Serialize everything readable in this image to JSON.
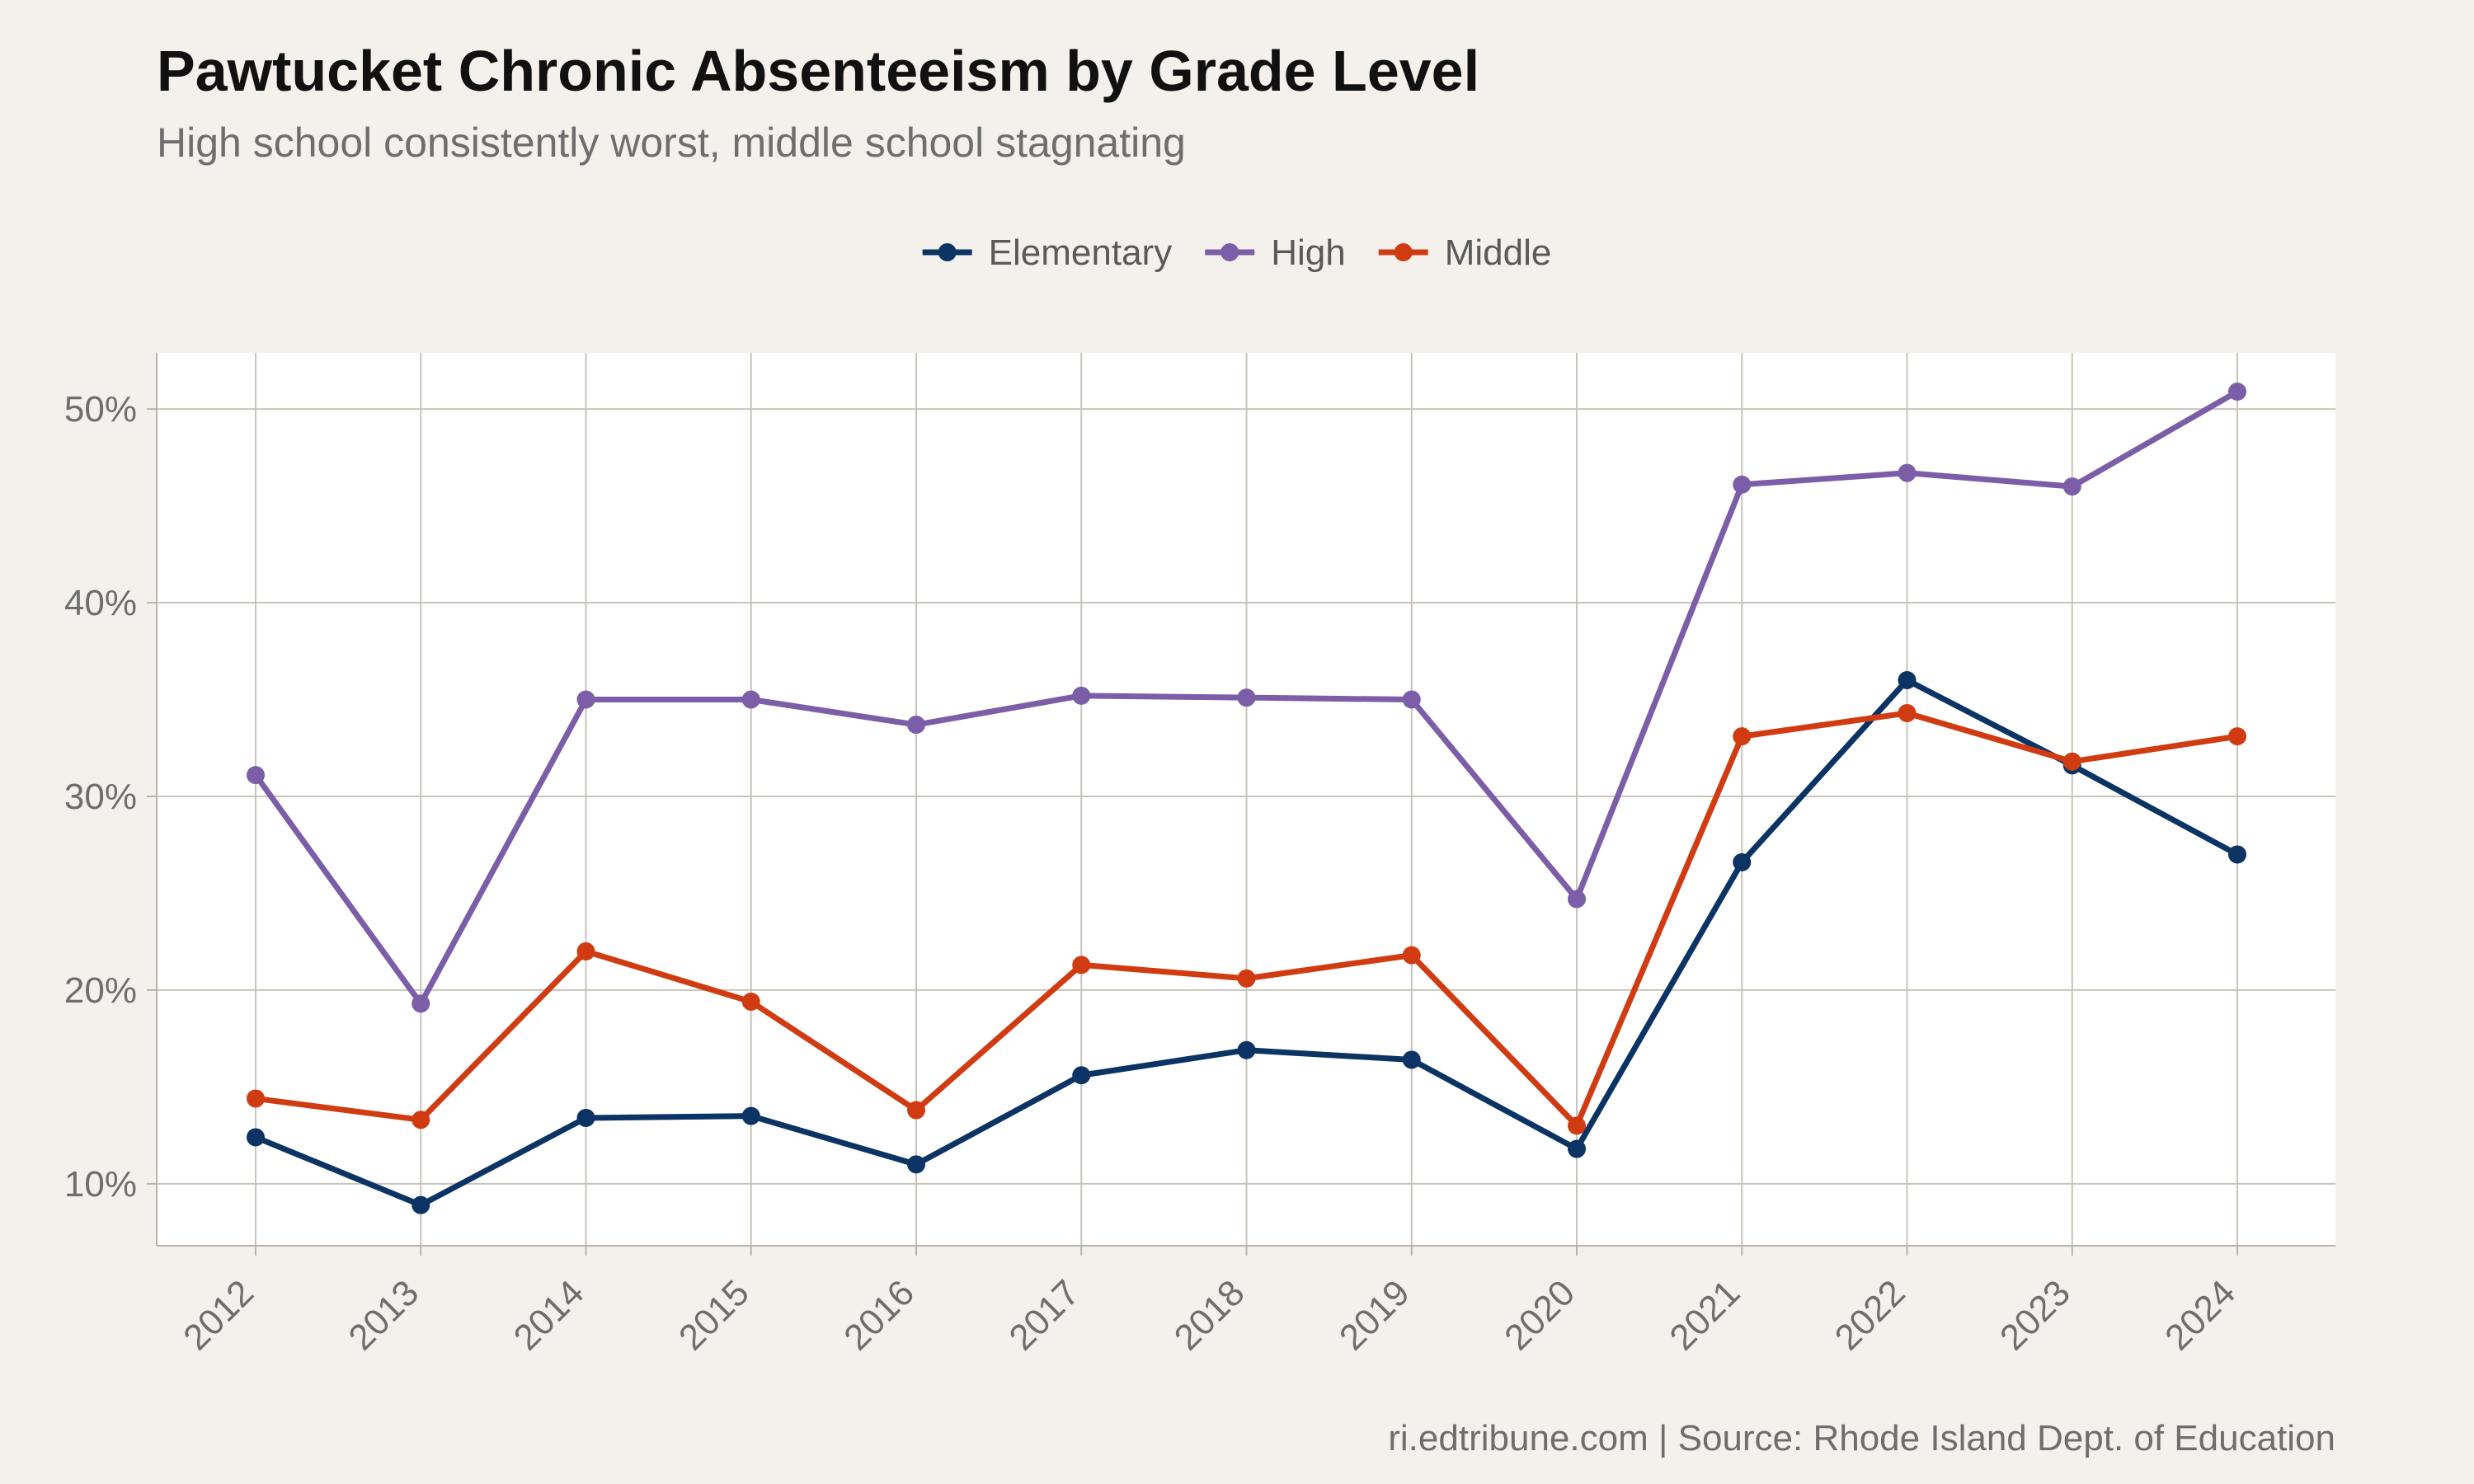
{
  "chart_data": {
    "type": "line",
    "title": "Pawtucket Chronic Absenteeism by Grade Level",
    "subtitle": "High school consistently worst, middle school stagnating",
    "caption": "ri.edtribune.com | Source: Rhode Island Dept. of Education",
    "xlabel": "",
    "ylabel": "",
    "x": [
      2012,
      2013,
      2014,
      2015,
      2016,
      2017,
      2018,
      2019,
      2020,
      2021,
      2022,
      2023,
      2024
    ],
    "x_tick_labels": [
      "2012",
      "2013",
      "2014",
      "2015",
      "2016",
      "2017",
      "2018",
      "2019",
      "2020",
      "2021",
      "2022",
      "2023",
      "2024"
    ],
    "y_ticks": [
      10,
      20,
      30,
      40,
      50
    ],
    "y_tick_labels": [
      "10%",
      "20%",
      "30%",
      "40%",
      "50%"
    ],
    "ylim": [
      6.8,
      52.9
    ],
    "grid": true,
    "legend_position": "top",
    "series": [
      {
        "name": "Elementary",
        "color": "#0b3364",
        "values": [
          12.4,
          8.9,
          13.4,
          13.5,
          11.0,
          15.6,
          16.9,
          16.4,
          11.8,
          26.6,
          36.0,
          31.6,
          27.0
        ]
      },
      {
        "name": "High",
        "color": "#7b5ea7",
        "values": [
          31.1,
          19.3,
          35.0,
          35.0,
          33.7,
          35.2,
          35.1,
          35.0,
          24.7,
          46.1,
          46.7,
          46.0,
          50.9
        ]
      },
      {
        "name": "Middle",
        "color": "#d13b12",
        "values": [
          14.4,
          13.3,
          22.0,
          19.4,
          13.8,
          21.3,
          20.6,
          21.8,
          13.0,
          33.1,
          34.3,
          31.8,
          33.1
        ]
      }
    ]
  }
}
